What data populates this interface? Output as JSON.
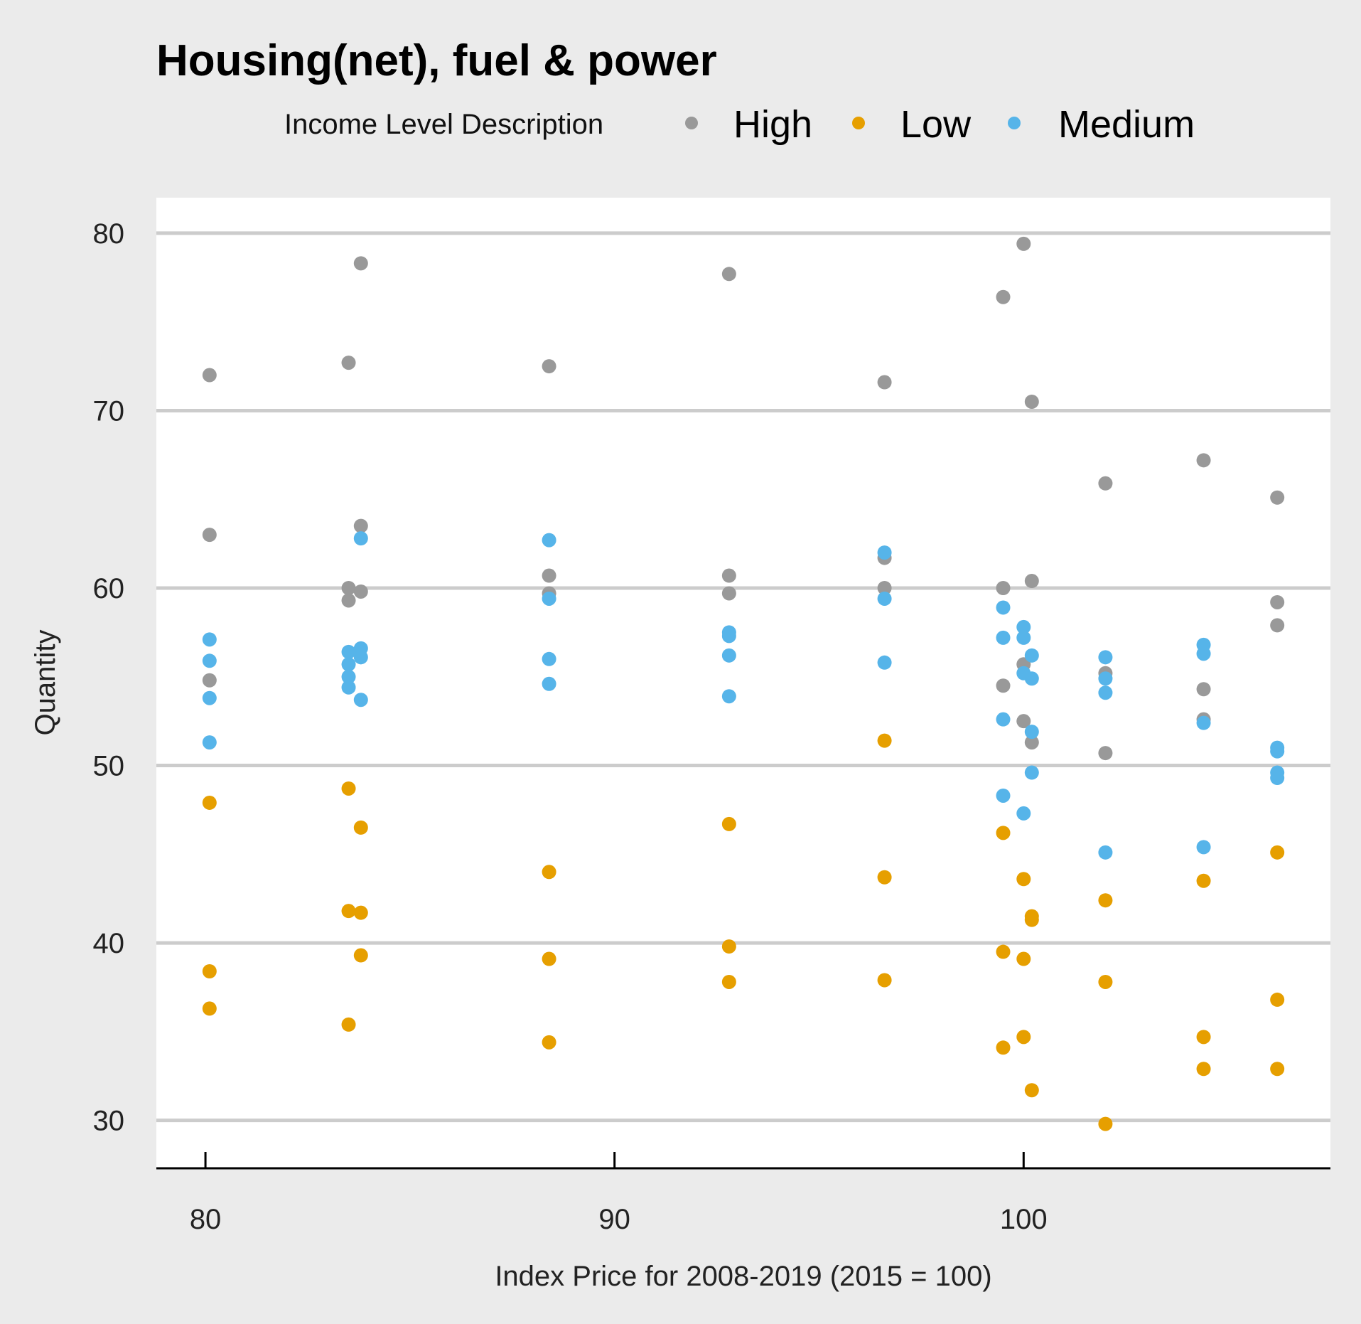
{
  "chart_data": {
    "type": "scatter",
    "title": "Housing(net), fuel & power",
    "xlabel": "Index Price for 2008-2019 (2015 = 100)",
    "ylabel": "Quantity",
    "xlim": [
      78.8,
      107.5
    ],
    "ylim": [
      27.3,
      82
    ],
    "xticks": [
      80,
      90,
      100
    ],
    "yticks": [
      30,
      40,
      50,
      60,
      70,
      80
    ],
    "grid": "horizontal",
    "legend": {
      "title": "Income Level Description",
      "placement": "top"
    },
    "series": [
      {
        "name": "High",
        "color": "#999999",
        "points": [
          [
            80.1,
            72.0
          ],
          [
            80.1,
            63.0
          ],
          [
            80.1,
            54.8
          ],
          [
            83.5,
            72.7
          ],
          [
            83.5,
            60.0
          ],
          [
            83.5,
            59.3
          ],
          [
            83.8,
            78.3
          ],
          [
            83.8,
            63.5
          ],
          [
            83.8,
            59.8
          ],
          [
            88.4,
            72.5
          ],
          [
            88.4,
            60.7
          ],
          [
            88.4,
            59.7
          ],
          [
            92.8,
            77.7
          ],
          [
            92.8,
            60.7
          ],
          [
            92.8,
            59.7
          ],
          [
            96.6,
            71.6
          ],
          [
            96.6,
            61.7
          ],
          [
            96.6,
            60.0
          ],
          [
            99.5,
            76.4
          ],
          [
            99.5,
            60.0
          ],
          [
            99.5,
            54.5
          ],
          [
            100.0,
            79.4
          ],
          [
            100.0,
            55.7
          ],
          [
            100.0,
            52.5
          ],
          [
            100.2,
            70.5
          ],
          [
            100.2,
            60.4
          ],
          [
            100.2,
            51.3
          ],
          [
            102.0,
            65.9
          ],
          [
            102.0,
            55.2
          ],
          [
            102.0,
            50.7
          ],
          [
            104.4,
            67.2
          ],
          [
            104.4,
            54.3
          ],
          [
            104.4,
            52.6
          ],
          [
            106.2,
            65.1
          ],
          [
            106.2,
            59.2
          ],
          [
            106.2,
            57.9
          ]
        ]
      },
      {
        "name": "Low",
        "color": "#E69F00",
        "points": [
          [
            80.1,
            47.9
          ],
          [
            80.1,
            38.4
          ],
          [
            80.1,
            36.3
          ],
          [
            83.5,
            48.7
          ],
          [
            83.5,
            41.8
          ],
          [
            83.5,
            35.4
          ],
          [
            83.8,
            46.5
          ],
          [
            83.8,
            41.7
          ],
          [
            83.8,
            39.3
          ],
          [
            88.4,
            44.0
          ],
          [
            88.4,
            39.1
          ],
          [
            88.4,
            34.4
          ],
          [
            92.8,
            46.7
          ],
          [
            92.8,
            39.8
          ],
          [
            92.8,
            37.8
          ],
          [
            96.6,
            51.4
          ],
          [
            96.6,
            43.7
          ],
          [
            96.6,
            37.9
          ],
          [
            99.5,
            46.2
          ],
          [
            99.5,
            39.5
          ],
          [
            99.5,
            34.1
          ],
          [
            100.0,
            43.6
          ],
          [
            100.0,
            39.1
          ],
          [
            100.0,
            34.7
          ],
          [
            100.2,
            41.5
          ],
          [
            100.2,
            41.3
          ],
          [
            100.2,
            31.7
          ],
          [
            102.0,
            42.4
          ],
          [
            102.0,
            37.8
          ],
          [
            102.0,
            29.8
          ],
          [
            104.4,
            43.5
          ],
          [
            104.4,
            34.7
          ],
          [
            104.4,
            32.9
          ],
          [
            106.2,
            45.1
          ],
          [
            106.2,
            36.8
          ],
          [
            106.2,
            32.9
          ]
        ]
      },
      {
        "name": "Medium",
        "color": "#56B4E9",
        "points": [
          [
            80.1,
            57.1
          ],
          [
            80.1,
            55.9
          ],
          [
            80.1,
            53.8
          ],
          [
            80.1,
            51.3
          ],
          [
            83.5,
            56.4
          ],
          [
            83.5,
            55.7
          ],
          [
            83.5,
            55.0
          ],
          [
            83.5,
            54.4
          ],
          [
            83.8,
            62.8
          ],
          [
            83.8,
            56.6
          ],
          [
            83.8,
            56.1
          ],
          [
            83.8,
            53.7
          ],
          [
            88.4,
            62.7
          ],
          [
            88.4,
            59.4
          ],
          [
            88.4,
            56.0
          ],
          [
            88.4,
            54.6
          ],
          [
            92.8,
            57.5
          ],
          [
            92.8,
            57.3
          ],
          [
            92.8,
            56.2
          ],
          [
            92.8,
            53.9
          ],
          [
            96.6,
            62.0
          ],
          [
            96.6,
            59.4
          ],
          [
            96.6,
            55.8
          ],
          [
            99.5,
            58.9
          ],
          [
            99.5,
            57.2
          ],
          [
            99.5,
            52.6
          ],
          [
            99.5,
            48.3
          ],
          [
            100.0,
            57.8
          ],
          [
            100.0,
            57.2
          ],
          [
            100.0,
            55.2
          ],
          [
            100.0,
            47.3
          ],
          [
            100.2,
            56.2
          ],
          [
            100.2,
            54.9
          ],
          [
            100.2,
            51.9
          ],
          [
            100.2,
            49.6
          ],
          [
            102.0,
            56.1
          ],
          [
            102.0,
            54.9
          ],
          [
            102.0,
            54.1
          ],
          [
            102.0,
            45.1
          ],
          [
            104.4,
            56.8
          ],
          [
            104.4,
            56.3
          ],
          [
            104.4,
            52.4
          ],
          [
            104.4,
            45.4
          ],
          [
            106.2,
            51.0
          ],
          [
            106.2,
            50.8
          ],
          [
            106.2,
            49.6
          ],
          [
            106.2,
            49.3
          ]
        ]
      }
    ]
  }
}
